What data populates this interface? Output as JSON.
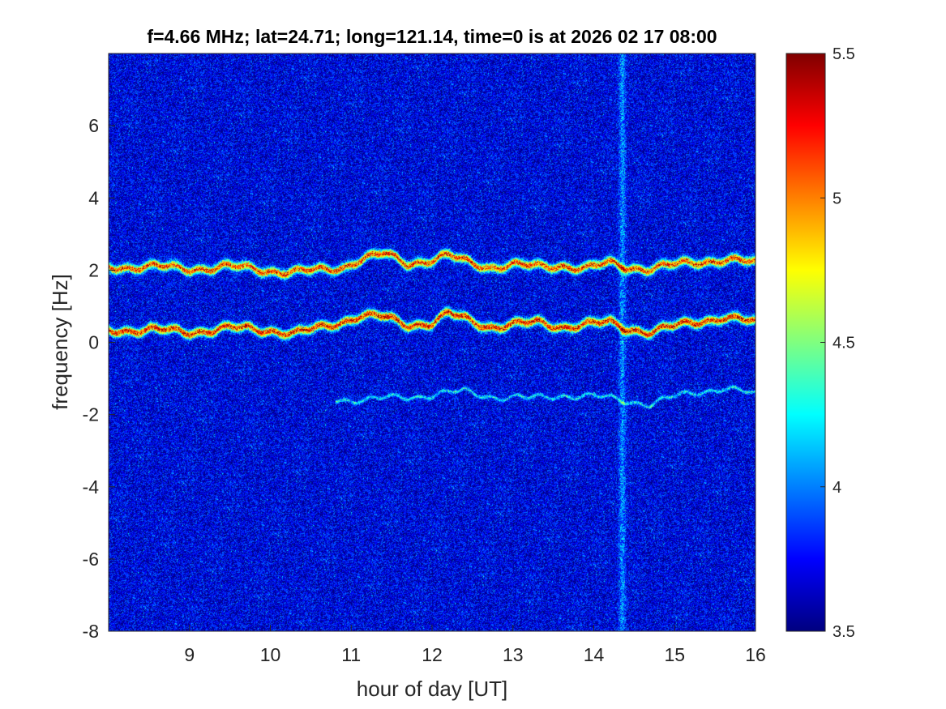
{
  "chart_data": {
    "type": "heatmap",
    "title": "f=4.66 MHz;  lat=24.71; long=121.14, time=0 is at 2026 02 17 08:00",
    "xlabel": "hour of day [UT]",
    "ylabel": "frequency [Hz]",
    "xlim": [
      8,
      16
    ],
    "ylim": [
      -8,
      8
    ],
    "xticks": [
      "9",
      "10",
      "11",
      "12",
      "13",
      "14",
      "15",
      "16"
    ],
    "yticks": [
      "-8",
      "-6",
      "-4",
      "-2",
      "0",
      "2",
      "4",
      "6"
    ],
    "colormap": "jet",
    "colorbar": {
      "clim": [
        3.5,
        5.5
      ],
      "ticks": [
        "3.5",
        "4",
        "4.5",
        "5",
        "5.5"
      ]
    },
    "background_level": 3.7,
    "traces": [
      {
        "x": [
          8.0,
          8.5,
          9.0,
          9.5,
          10.0,
          10.3,
          10.6,
          10.9,
          11.1,
          11.4,
          11.7,
          12.0,
          12.2,
          12.4,
          12.7,
          13.0,
          13.3,
          13.6,
          13.9,
          14.2,
          14.4,
          14.7,
          15.0,
          15.3,
          15.6,
          16.0
        ],
        "y": [
          2.1,
          2.1,
          2.05,
          2.1,
          2.0,
          1.95,
          2.0,
          2.1,
          2.3,
          2.45,
          2.2,
          2.3,
          2.4,
          2.25,
          2.1,
          2.15,
          2.1,
          2.15,
          2.05,
          2.2,
          2.1,
          2.05,
          2.15,
          2.25,
          2.3,
          2.2
        ],
        "level": 5.3
      },
      {
        "x": [
          8.0,
          8.5,
          9.0,
          9.5,
          10.0,
          10.3,
          10.6,
          10.9,
          11.1,
          11.4,
          11.7,
          12.0,
          12.2,
          12.4,
          12.7,
          13.0,
          13.3,
          13.6,
          13.9,
          14.2,
          14.4,
          14.7,
          15.0,
          15.3,
          15.6,
          16.0
        ],
        "y": [
          0.35,
          0.35,
          0.3,
          0.4,
          0.35,
          0.25,
          0.4,
          0.6,
          0.75,
          0.7,
          0.5,
          0.55,
          0.8,
          0.65,
          0.45,
          0.5,
          0.55,
          0.45,
          0.5,
          0.55,
          0.4,
          0.3,
          0.45,
          0.6,
          0.7,
          0.55
        ],
        "level": 5.4
      },
      {
        "x": [
          10.8,
          11.2,
          11.6,
          12.0,
          12.4,
          12.8,
          13.2,
          13.6,
          14.0,
          14.4,
          14.7,
          15.0,
          15.3,
          15.6,
          16.0
        ],
        "y": [
          -1.55,
          -1.6,
          -1.5,
          -1.45,
          -1.35,
          -1.5,
          -1.55,
          -1.45,
          -1.5,
          -1.6,
          -1.7,
          -1.5,
          -1.35,
          -1.25,
          -1.45
        ],
        "level": 4.3
      }
    ],
    "vertical_band": {
      "x": 14.35,
      "level": 4.1
    }
  }
}
